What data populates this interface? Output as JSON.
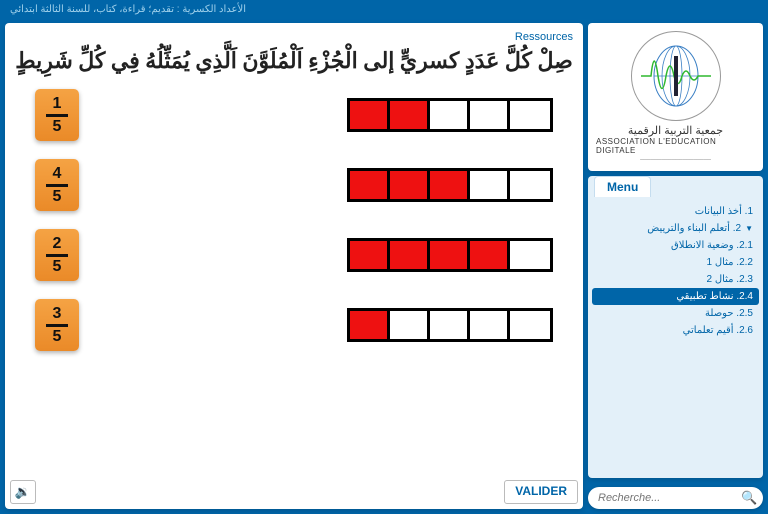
{
  "header": {
    "text": "الأعداد الكسرية : تقديم؛ قراءة، كتاب، للسنة الثالثة ابتدائي"
  },
  "content": {
    "resources_label": "Ressources",
    "question": "صِلْ كُلَّ عَدَدٍ كسريٍّ إلى الْجُزْءِ اَلْمُلَوَّنَ اَلَّذِي يُمَثِّلُهُ فِي كُلِّ شَرِيطٍ",
    "rows": [
      {
        "numerator": "1",
        "denominator": "5",
        "filled": 2,
        "total": 5
      },
      {
        "numerator": "4",
        "denominator": "5",
        "filled": 3,
        "total": 5
      },
      {
        "numerator": "2",
        "denominator": "5",
        "filled": 4,
        "total": 5
      },
      {
        "numerator": "3",
        "denominator": "5",
        "filled": 1,
        "total": 5
      }
    ],
    "validate_label": "VALIDER"
  },
  "sidebar": {
    "logo": {
      "text_ar": "جمعية التربية الرقمية",
      "text_en": "ASSOCIATION L'EDUCATION DIGITALE",
      "wave_color": "#2eb82e",
      "grid_color": "#3a7fc4"
    },
    "menu": {
      "tab_label": "Menu",
      "items": [
        {
          "label": "1. أخذ البيانات",
          "indent": 0,
          "active": false,
          "arrow": ""
        },
        {
          "label": "2. أتعلم البناء والترييض",
          "indent": 0,
          "active": false,
          "arrow": "▼"
        },
        {
          "label": "2.1. وضعية الانطلاق",
          "indent": 1,
          "active": false,
          "arrow": ""
        },
        {
          "label": "2.2. مثال 1",
          "indent": 1,
          "active": false,
          "arrow": ""
        },
        {
          "label": "2.3. مثال 2",
          "indent": 1,
          "active": false,
          "arrow": ""
        },
        {
          "label": "2.4. نشاط تطبيقي",
          "indent": 1,
          "active": true,
          "arrow": ""
        },
        {
          "label": "2.5. حوصلة",
          "indent": 1,
          "active": false,
          "arrow": ""
        },
        {
          "label": "2.6. أقيم تعلماتي",
          "indent": 1,
          "active": false,
          "arrow": ""
        }
      ]
    },
    "search": {
      "placeholder": "Recherche..."
    }
  },
  "colors": {
    "primary": "#0065a8",
    "panel_bg": "#ffffff",
    "menu_bg": "#e3f0f9",
    "fraction_grad_top": "#f5a344",
    "fraction_grad_bottom": "#ea8a28",
    "fill_color": "#ee1111",
    "border_color": "#000000"
  }
}
